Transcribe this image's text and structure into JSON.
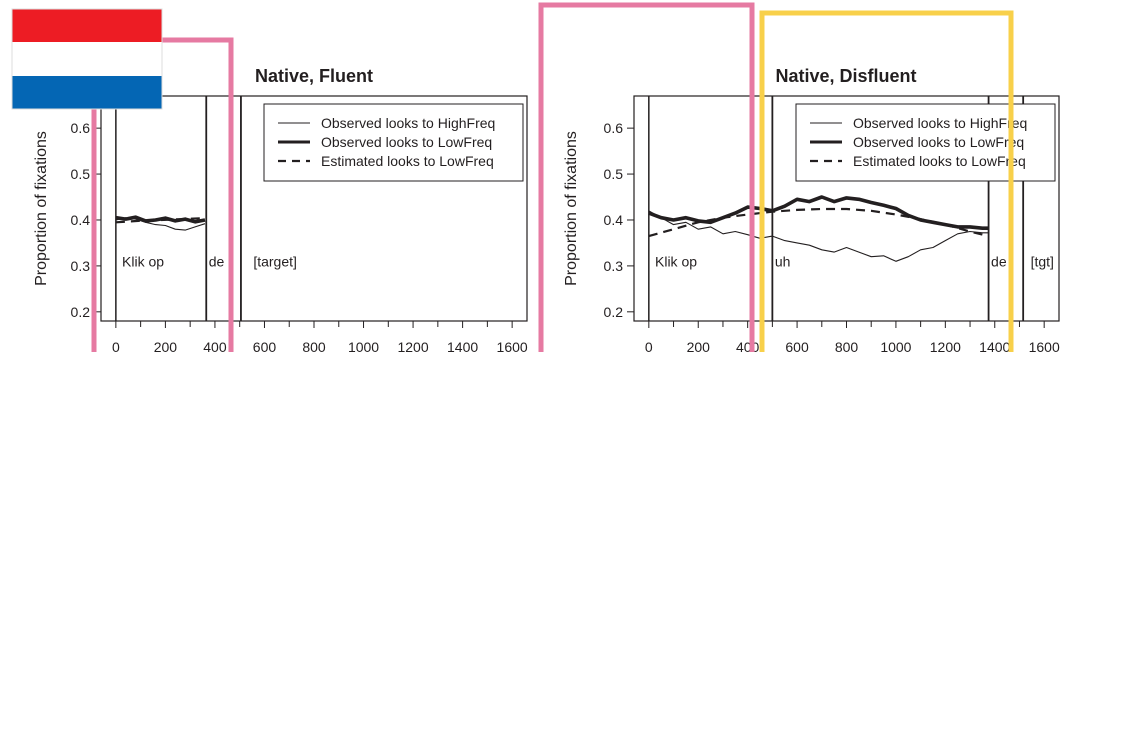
{
  "colors": {
    "ink": "#231f20",
    "pink_box": "#e67aa2",
    "yellow_box": "#f8d04a",
    "flag_red": "#ed1c24",
    "flag_white": "#ffffff",
    "flag_blue": "#0466b4"
  },
  "flag_icon": "netherlands-flag-icon",
  "chart_data": [
    {
      "type": "line",
      "title": "Native, Fluent",
      "ylabel": "Proportion of fixations",
      "xlabel": "",
      "xlim": [
        -60,
        1660
      ],
      "ylim": [
        0.18,
        0.67
      ],
      "x_ticks": [
        "0",
        "200",
        "400",
        "600",
        "800",
        "1000",
        "1200",
        "1400",
        "1600"
      ],
      "y_ticks": [
        "0.2",
        "0.3",
        "0.4",
        "0.5",
        "0.6"
      ],
      "legend_position": "top-right",
      "legend": [
        "Observed looks to HighFreq",
        "Observed looks to LowFreq",
        "Estimated looks to LowFreq"
      ],
      "segment_boundaries": [
        0,
        365,
        505
      ],
      "segments": [
        {
          "label": "Klik op",
          "x": 25
        },
        {
          "label": "de",
          "x": 375
        },
        {
          "label": "[target]",
          "x": 555
        }
      ],
      "series": [
        {
          "name": "Observed looks to HighFreq",
          "style": "thin",
          "x": [
            0,
            40,
            80,
            120,
            160,
            200,
            240,
            280,
            320,
            360
          ],
          "y": [
            0.4,
            0.405,
            0.402,
            0.395,
            0.39,
            0.388,
            0.38,
            0.378,
            0.385,
            0.392
          ]
        },
        {
          "name": "Observed looks to LowFreq",
          "style": "thick",
          "x": [
            0,
            40,
            80,
            120,
            160,
            200,
            240,
            280,
            320,
            360
          ],
          "y": [
            0.405,
            0.402,
            0.406,
            0.398,
            0.4,
            0.404,
            0.398,
            0.402,
            0.396,
            0.4
          ]
        },
        {
          "name": "Estimated looks to LowFreq",
          "style": "dashed",
          "x": [
            0,
            90,
            180,
            270,
            360
          ],
          "y": [
            0.395,
            0.398,
            0.4,
            0.402,
            0.404
          ]
        }
      ]
    },
    {
      "type": "line",
      "title": "Native, Disfluent",
      "ylabel": "Proportion of fixations",
      "xlabel": "",
      "xlim": [
        -60,
        1660
      ],
      "ylim": [
        0.18,
        0.67
      ],
      "x_ticks": [
        "0",
        "200",
        "400",
        "600",
        "800",
        "1000",
        "1200",
        "1400",
        "1600"
      ],
      "y_ticks": [
        "0.2",
        "0.3",
        "0.4",
        "0.5",
        "0.6"
      ],
      "legend_position": "top-right",
      "legend": [
        "Observed looks to HighFreq",
        "Observed looks to LowFreq",
        "Estimated looks to LowFreq"
      ],
      "segment_boundaries": [
        0,
        500,
        1375,
        1515
      ],
      "segments": [
        {
          "label": "Klik op",
          "x": 25
        },
        {
          "label": "uh",
          "x": 510
        },
        {
          "label": "de",
          "x": 1385
        },
        {
          "label": "[tgt]",
          "x": 1545
        }
      ],
      "series": [
        {
          "name": "Observed looks to HighFreq",
          "style": "thin",
          "x": [
            0,
            50,
            100,
            150,
            200,
            250,
            300,
            350,
            400,
            450,
            500,
            550,
            600,
            650,
            700,
            750,
            800,
            850,
            900,
            950,
            1000,
            1050,
            1100,
            1150,
            1200,
            1250,
            1300,
            1350,
            1375
          ],
          "y": [
            0.42,
            0.405,
            0.39,
            0.395,
            0.38,
            0.385,
            0.37,
            0.375,
            0.368,
            0.36,
            0.365,
            0.355,
            0.35,
            0.345,
            0.335,
            0.33,
            0.34,
            0.33,
            0.32,
            0.322,
            0.31,
            0.32,
            0.335,
            0.34,
            0.355,
            0.37,
            0.375,
            0.372,
            0.372
          ]
        },
        {
          "name": "Observed looks to LowFreq",
          "style": "thick",
          "x": [
            0,
            50,
            100,
            150,
            200,
            250,
            300,
            350,
            400,
            450,
            500,
            550,
            600,
            650,
            700,
            750,
            800,
            850,
            900,
            950,
            1000,
            1050,
            1100,
            1150,
            1200,
            1250,
            1300,
            1350,
            1375
          ],
          "y": [
            0.415,
            0.405,
            0.4,
            0.405,
            0.398,
            0.395,
            0.405,
            0.415,
            0.428,
            0.425,
            0.42,
            0.43,
            0.445,
            0.44,
            0.45,
            0.44,
            0.448,
            0.445,
            0.438,
            0.432,
            0.425,
            0.41,
            0.4,
            0.395,
            0.39,
            0.385,
            0.385,
            0.382,
            0.382
          ]
        },
        {
          "name": "Estimated looks to LowFreq",
          "style": "dashed",
          "x": [
            0,
            100,
            200,
            300,
            400,
            500,
            600,
            700,
            800,
            900,
            1000,
            1100,
            1200,
            1300,
            1375
          ],
          "y": [
            0.365,
            0.38,
            0.395,
            0.405,
            0.412,
            0.418,
            0.422,
            0.424,
            0.424,
            0.42,
            0.412,
            0.402,
            0.39,
            0.375,
            0.365
          ]
        }
      ]
    }
  ]
}
